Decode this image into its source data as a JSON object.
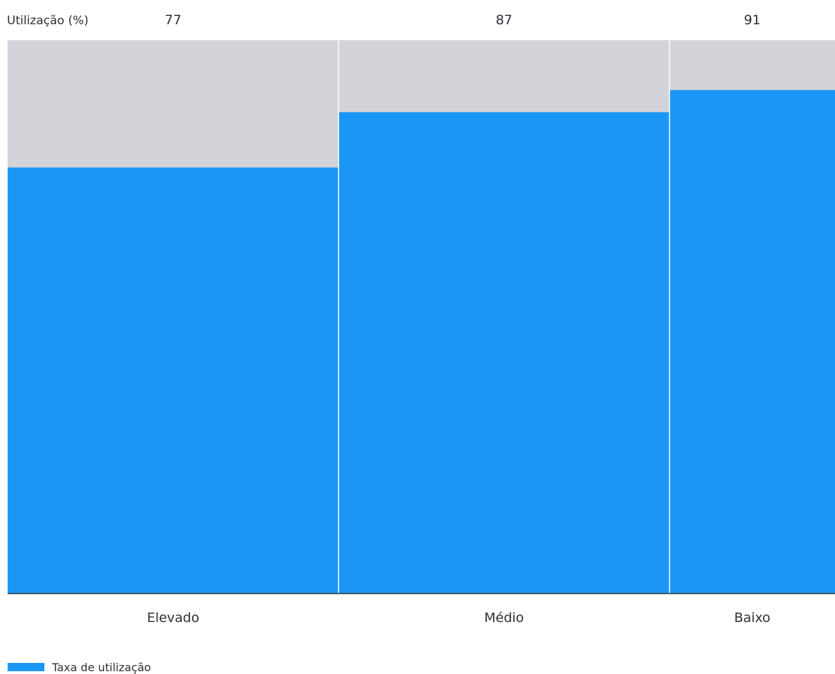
{
  "chart_data": {
    "type": "bar",
    "ylabel": "Utilização (%)",
    "categories": [
      "Elevado",
      "Médio",
      "Baixo"
    ],
    "values": [
      77,
      87,
      91
    ],
    "widths": [
      0.4,
      0.4,
      0.2
    ],
    "ylim": [
      0,
      100
    ],
    "series": [
      {
        "name": "Taxa de utilização",
        "values": [
          77,
          87,
          91
        ]
      }
    ],
    "legend": "bottom-left",
    "grid": false,
    "colors": {
      "bar": "#1c96f5",
      "remainder": "#d3d3d9",
      "axis": "#2e2e38",
      "divider": "#ffffff"
    }
  }
}
